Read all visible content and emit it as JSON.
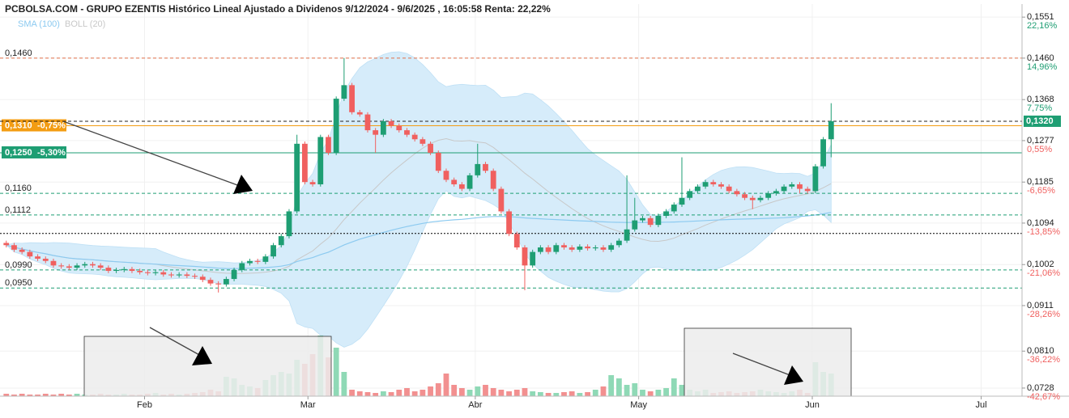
{
  "chart_data": {
    "type": "candlestick",
    "title": "PCBOLSA.COM - GRUPO EZENTIS Histórico Lineal Ajustado a Dividenos 9/12/2024 - 9/6/2025 , 16:05:58 Renta: 22,22%",
    "indicators": [
      {
        "name": "SMA (100)",
        "color": "#8ccaf0"
      },
      {
        "name": "BOLL (20)",
        "color": "#c8c8c8"
      }
    ],
    "up_color": "#1e9e73",
    "down_color": "#f0605f",
    "up_volume_color": "#8fd9b6",
    "down_volume_color": "#f29090",
    "band_color": "#d6ecfa",
    "xlim": [
      -0.8,
      129.3
    ],
    "xticks": [
      {
        "value": 17.6,
        "label": "Feb"
      },
      {
        "value": 38.4,
        "label": "Mar"
      },
      {
        "value": 59.7,
        "label": "Abr"
      },
      {
        "value": 80.5,
        "label": "May"
      },
      {
        "value": 102.6,
        "label": "Jun"
      },
      {
        "value": 124.1,
        "label": "Jul"
      }
    ],
    "ylim": [
      0.071,
      0.158
    ],
    "yticks": [
      {
        "value": 0.1551,
        "label": "0,1551"
      },
      {
        "value": 0.146,
        "label": "0,1460"
      },
      {
        "value": 0.1368,
        "label": "0,1368"
      },
      {
        "value": 0.1277,
        "label": "0,1277"
      },
      {
        "value": 0.1185,
        "label": "0,1185"
      },
      {
        "value": 0.1094,
        "label": "0,1094"
      },
      {
        "value": 0.1002,
        "label": "0,1002"
      },
      {
        "value": 0.0911,
        "label": "0,0911"
      },
      {
        "value": 0.081,
        "label": "0,0810"
      },
      {
        "value": 0.0728,
        "label": "0,0728"
      }
    ],
    "ytick_returns": [
      "22,16%",
      "14,96%",
      "7,75%",
      "0,55%",
      "-6,65%",
      "-13,85%",
      "-21,06%",
      "-28,26%",
      "-36,22%",
      "-42,67%"
    ],
    "last_price": {
      "value": 0.132,
      "label": "0,1320"
    },
    "levels": [
      {
        "value": 0.146,
        "label": "0,1460",
        "color": "#e0704a",
        "dash": "4,3"
      },
      {
        "value": 0.131,
        "label": "0,1310",
        "pct": "-0,75%",
        "color": "#f39c12",
        "box": true
      },
      {
        "value": 0.125,
        "label": "0,1250",
        "pct": "-5,30%",
        "color": "#1e9e73",
        "box": true
      },
      {
        "value": 0.116,
        "label": "0,1160",
        "color": "#1e9e73",
        "dash": "4,3"
      },
      {
        "value": 0.1112,
        "label": "0,1112",
        "color": "#1e9e73",
        "dash": "4,3"
      },
      {
        "value": 0.1071,
        "color": "#000000",
        "dash": "2,2"
      },
      {
        "value": 0.099,
        "label": "0,0990",
        "color": "#1e9e73",
        "dash": "4,3"
      },
      {
        "value": 0.095,
        "label": "0,0950",
        "color": "#1e9e73",
        "dash": "4,3"
      }
    ],
    "open": [
      0.105,
      0.1045,
      0.1035,
      0.103,
      0.102,
      0.1015,
      0.101,
      0.1,
      0.0998,
      0.0995,
      0.1,
      0.1003,
      0.1,
      0.0995,
      0.0988,
      0.099,
      0.0992,
      0.0988,
      0.0985,
      0.0983,
      0.0985,
      0.098,
      0.0978,
      0.098,
      0.0977,
      0.0975,
      0.0968,
      0.096,
      0.0958,
      0.097,
      0.099,
      0.1005,
      0.101,
      0.1008,
      0.102,
      0.1045,
      0.1065,
      0.112,
      0.127,
      0.1185,
      0.118,
      0.1285,
      0.125,
      0.137,
      0.14,
      0.134,
      0.1335,
      0.13,
      0.129,
      0.132,
      0.131,
      0.13,
      0.129,
      0.128,
      0.127,
      0.125,
      0.121,
      0.119,
      0.118,
      0.117,
      0.12,
      0.1225,
      0.121,
      0.117,
      0.112,
      0.107,
      0.104,
      0.1,
      0.103,
      0.104,
      0.103,
      0.1045,
      0.104,
      0.1035,
      0.1042,
      0.1038,
      0.104,
      0.1035,
      0.1045,
      0.1055,
      0.108,
      0.11,
      0.1105,
      0.109,
      0.111,
      0.112,
      0.1135,
      0.115,
      0.1165,
      0.1175,
      0.1185,
      0.118,
      0.1175,
      0.1165,
      0.1158,
      0.115,
      0.1145,
      0.115,
      0.116,
      0.1165,
      0.1175,
      0.118,
      0.117,
      0.1165,
      0.122,
      0.128
    ],
    "high": [
      0.1055,
      0.105,
      0.104,
      0.1035,
      0.1025,
      0.102,
      0.1015,
      0.1005,
      0.1003,
      0.1005,
      0.1008,
      0.1008,
      0.1005,
      0.1,
      0.0995,
      0.0997,
      0.0997,
      0.0993,
      0.099,
      0.099,
      0.099,
      0.0985,
      0.0985,
      0.0985,
      0.0982,
      0.098,
      0.0973,
      0.0965,
      0.0975,
      0.0995,
      0.101,
      0.1015,
      0.1015,
      0.1025,
      0.105,
      0.107,
      0.1125,
      0.129,
      0.1275,
      0.119,
      0.129,
      0.129,
      0.1375,
      0.146,
      0.1405,
      0.1345,
      0.134,
      0.1305,
      0.1325,
      0.1325,
      0.1315,
      0.1305,
      0.1295,
      0.1285,
      0.1275,
      0.1255,
      0.1215,
      0.1195,
      0.1185,
      0.1205,
      0.127,
      0.123,
      0.1215,
      0.1175,
      0.1125,
      0.1075,
      0.1045,
      0.1035,
      0.1045,
      0.1045,
      0.105,
      0.105,
      0.1045,
      0.1047,
      0.1047,
      0.1045,
      0.1045,
      0.105,
      0.106,
      0.12,
      0.115,
      0.111,
      0.111,
      0.1115,
      0.1125,
      0.114,
      0.124,
      0.117,
      0.118,
      0.119,
      0.119,
      0.1185,
      0.118,
      0.117,
      0.1163,
      0.1155,
      0.1155,
      0.1165,
      0.117,
      0.118,
      0.1185,
      0.1185,
      0.1175,
      0.1225,
      0.1285,
      0.136
    ],
    "low": [
      0.104,
      0.103,
      0.1025,
      0.1015,
      0.101,
      0.1005,
      0.0995,
      0.0993,
      0.099,
      0.099,
      0.0995,
      0.0995,
      0.099,
      0.0983,
      0.0983,
      0.0985,
      0.0983,
      0.098,
      0.0978,
      0.0978,
      0.0975,
      0.0973,
      0.0973,
      0.0972,
      0.097,
      0.0963,
      0.0955,
      0.094,
      0.0953,
      0.0965,
      0.0985,
      0.1,
      0.1003,
      0.1003,
      0.1015,
      0.104,
      0.106,
      0.1115,
      0.118,
      0.1175,
      0.1175,
      0.1245,
      0.1245,
      0.1365,
      0.1335,
      0.133,
      0.1295,
      0.125,
      0.1285,
      0.1305,
      0.1295,
      0.1285,
      0.1275,
      0.1265,
      0.1245,
      0.1205,
      0.1185,
      0.1175,
      0.1165,
      0.1165,
      0.1195,
      0.1205,
      0.1165,
      0.1115,
      0.1065,
      0.1035,
      0.0945,
      0.0995,
      0.1025,
      0.1025,
      0.1025,
      0.1035,
      0.103,
      0.103,
      0.1033,
      0.1033,
      0.103,
      0.103,
      0.104,
      0.105,
      0.1075,
      0.1095,
      0.1085,
      0.1085,
      0.1105,
      0.1115,
      0.113,
      0.1145,
      0.116,
      0.117,
      0.1175,
      0.117,
      0.116,
      0.1153,
      0.1145,
      0.1125,
      0.114,
      0.1145,
      0.1155,
      0.116,
      0.117,
      0.116,
      0.116,
      0.116,
      0.1215,
      0.124
    ],
    "close": [
      0.1045,
      0.1035,
      0.103,
      0.102,
      0.1015,
      0.101,
      0.1,
      0.0998,
      0.0995,
      0.1,
      0.1003,
      0.1,
      0.0995,
      0.0988,
      0.099,
      0.0992,
      0.0988,
      0.0985,
      0.0983,
      0.0985,
      0.098,
      0.0978,
      0.098,
      0.0977,
      0.0975,
      0.0968,
      0.096,
      0.0958,
      0.097,
      0.099,
      0.1005,
      0.101,
      0.1008,
      0.102,
      0.1045,
      0.1065,
      0.112,
      0.127,
      0.1185,
      0.118,
      0.1285,
      0.125,
      0.137,
      0.14,
      0.134,
      0.1335,
      0.13,
      0.129,
      0.132,
      0.131,
      0.13,
      0.129,
      0.128,
      0.127,
      0.125,
      0.121,
      0.119,
      0.118,
      0.117,
      0.12,
      0.1225,
      0.121,
      0.117,
      0.112,
      0.107,
      0.104,
      0.1,
      0.103,
      0.104,
      0.103,
      0.1045,
      0.104,
      0.1035,
      0.1042,
      0.1038,
      0.104,
      0.1035,
      0.1045,
      0.1055,
      0.108,
      0.11,
      0.1105,
      0.109,
      0.111,
      0.112,
      0.1135,
      0.115,
      0.1165,
      0.1175,
      0.1185,
      0.118,
      0.1175,
      0.1165,
      0.1158,
      0.115,
      0.1145,
      0.115,
      0.116,
      0.1165,
      0.1175,
      0.118,
      0.117,
      0.1165,
      0.122,
      0.128,
      0.132
    ],
    "volume_lim": [
      0,
      80
    ],
    "volume": [
      3,
      2,
      3,
      2,
      2,
      3,
      2,
      3,
      2,
      3,
      2,
      2,
      3,
      2,
      2,
      3,
      2,
      2,
      3,
      4,
      2,
      3,
      2,
      3,
      4,
      5,
      8,
      6,
      24,
      22,
      14,
      12,
      10,
      20,
      26,
      30,
      28,
      45,
      40,
      52,
      75,
      48,
      60,
      30,
      8,
      6,
      5,
      4,
      6,
      5,
      8,
      10,
      6,
      8,
      12,
      16,
      28,
      14,
      10,
      8,
      12,
      14,
      10,
      8,
      6,
      8,
      10,
      6,
      5,
      4,
      4,
      5,
      6,
      4,
      5,
      8,
      12,
      26,
      22,
      14,
      16,
      8,
      6,
      8,
      10,
      22,
      14,
      8,
      6,
      8,
      4,
      5,
      6,
      4,
      5,
      6,
      8,
      6,
      5,
      4,
      6,
      8,
      4,
      42,
      30,
      28
    ]
  }
}
